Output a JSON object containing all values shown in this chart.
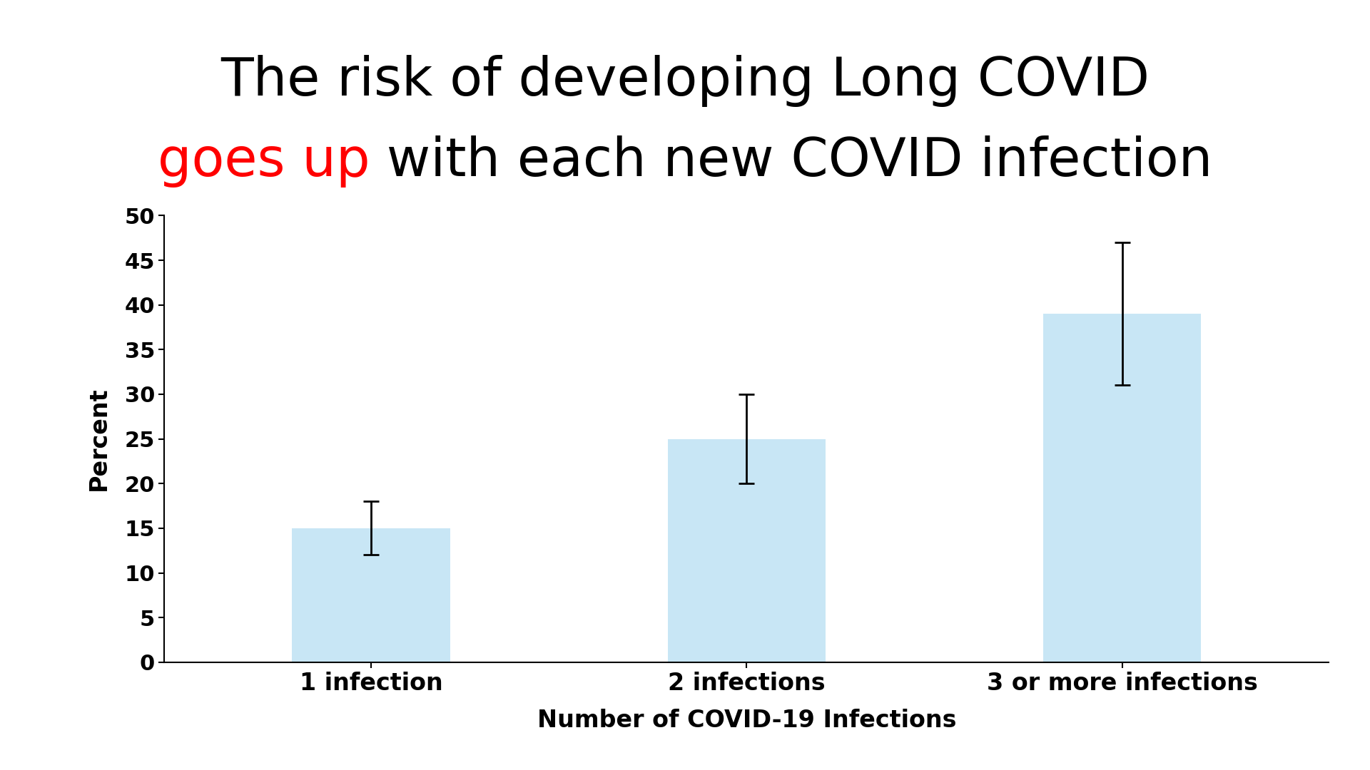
{
  "categories": [
    "1 infection",
    "2 infections",
    "3 or more infections"
  ],
  "values": [
    15.0,
    25.0,
    39.0
  ],
  "errors_upper": [
    3.0,
    5.0,
    8.0
  ],
  "errors_lower": [
    3.0,
    5.0,
    8.0
  ],
  "bar_color": "#C8E6F5",
  "bar_edgecolor": "#C8E6F5",
  "title_line1": "The risk of developing Long COVID",
  "title_line2_red": "goes up",
  "title_line2_black": " with each new COVID infection",
  "xlabel": "Number of COVID-19 Infections",
  "ylabel": "Percent",
  "ylim": [
    0,
    50
  ],
  "yticks": [
    0,
    5,
    10,
    15,
    20,
    25,
    30,
    35,
    40,
    45,
    50
  ],
  "background_color": "#ffffff",
  "title_fontsize": 54,
  "axis_label_fontsize": 24,
  "tick_fontsize": 22,
  "xtick_fontsize": 24,
  "error_color": "black",
  "error_linewidth": 2.0,
  "error_capsize": 8,
  "error_capthick": 2.0
}
